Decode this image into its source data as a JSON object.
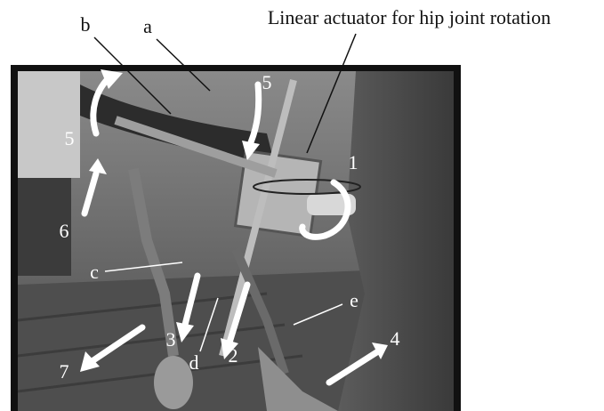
{
  "caption": "Linear actuator for hip joint rotation",
  "labels": [
    "a",
    "b",
    "c",
    "d",
    "e",
    "1",
    "2",
    "3",
    "4",
    "5",
    "5",
    "6",
    "7"
  ]
}
